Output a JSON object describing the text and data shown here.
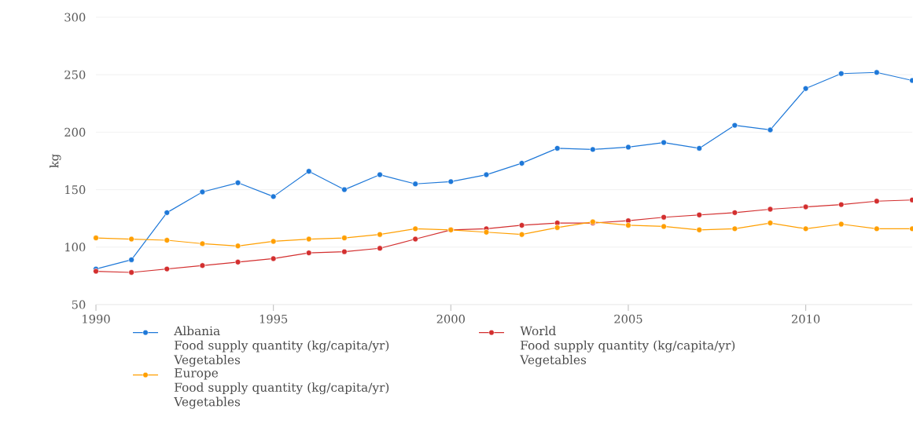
{
  "chart_data": {
    "type": "line",
    "ylabel": "kg",
    "x": [
      1990,
      1991,
      1992,
      1993,
      1994,
      1995,
      1996,
      1997,
      1998,
      1999,
      2000,
      2001,
      2002,
      2003,
      2004,
      2005,
      2006,
      2007,
      2008,
      2009,
      2010,
      2011,
      2012,
      2013
    ],
    "series": [
      {
        "name": "Albania\nFood supply quantity (kg/capita/yr)\nVegetables",
        "color": "#1e78d8",
        "values": [
          81,
          89,
          130,
          148,
          156,
          144,
          166,
          150,
          163,
          155,
          157,
          163,
          173,
          186,
          185,
          187,
          191,
          186,
          206,
          202,
          238,
          251,
          252,
          245
        ]
      },
      {
        "name": "World\nFood supply quantity (kg/capita/yr)\nVegetables",
        "color": "#d32f2f",
        "values": [
          79,
          78,
          81,
          84,
          87,
          90,
          95,
          96,
          99,
          107,
          115,
          116,
          119,
          121,
          121,
          123,
          126,
          128,
          130,
          133,
          135,
          137,
          140,
          141
        ]
      },
      {
        "name": "Europe\nFood supply quantity (kg/capita/yr)\nVegetables",
        "color": "#ff9f00",
        "values": [
          108,
          107,
          106,
          103,
          101,
          105,
          107,
          108,
          111,
          116,
          115,
          113,
          111,
          117,
          122,
          119,
          118,
          115,
          116,
          121,
          116,
          120,
          116,
          116
        ]
      }
    ],
    "xlim": [
      1990,
      2013
    ],
    "xticks": [
      1990,
      1995,
      2000,
      2005,
      2010
    ],
    "ylim": [
      50,
      300
    ],
    "yticks": [
      50,
      100,
      150,
      200,
      250,
      300
    ],
    "grid": "y",
    "legend": "bottom",
    "marker": "circle",
    "line_style": "solid"
  }
}
